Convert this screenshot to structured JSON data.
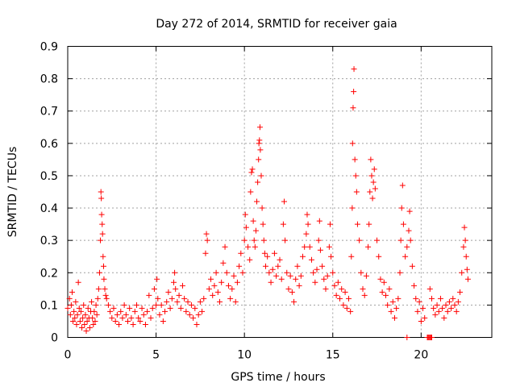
{
  "chart_data": {
    "type": "scatter",
    "title": "Day 272 of 2014, SRMTID for receiver gaia",
    "xlabel": "GPS time / hours",
    "ylabel": "SRMTID / TECUs",
    "xlim": [
      0,
      24
    ],
    "ylim": [
      0,
      0.9
    ],
    "xticks": [
      0,
      5,
      10,
      15,
      20
    ],
    "xtick_labels": [
      "0",
      "5",
      "10",
      "15",
      "20"
    ],
    "yticks": [
      0,
      0.1,
      0.2,
      0.3,
      0.4,
      0.5,
      0.6,
      0.7,
      0.8,
      0.9
    ],
    "ytick_labels": [
      "0",
      "0.1",
      "0.2",
      "0.3",
      "0.4",
      "0.5",
      "0.6",
      "0.7",
      "0.8",
      "0.9"
    ],
    "grid": true,
    "marker": "+",
    "series": [
      {
        "name": "SRMTID",
        "color": "#ff0000",
        "points": [
          [
            0.0,
            0.09
          ],
          [
            0.1,
            0.12
          ],
          [
            0.15,
            0.07
          ],
          [
            0.2,
            0.1
          ],
          [
            0.25,
            0.14
          ],
          [
            0.3,
            0.05
          ],
          [
            0.35,
            0.08
          ],
          [
            0.4,
            0.06
          ],
          [
            0.45,
            0.11
          ],
          [
            0.5,
            0.04
          ],
          [
            0.55,
            0.07
          ],
          [
            0.6,
            0.17
          ],
          [
            0.65,
            0.09
          ],
          [
            0.7,
            0.05
          ],
          [
            0.75,
            0.08
          ],
          [
            0.8,
            0.03
          ],
          [
            0.85,
            0.06
          ],
          [
            0.9,
            0.1
          ],
          [
            0.95,
            0.04
          ],
          [
            1.0,
            0.07
          ],
          [
            1.05,
            0.02
          ],
          [
            1.1,
            0.05
          ],
          [
            1.15,
            0.09
          ],
          [
            1.2,
            0.06
          ],
          [
            1.25,
            0.03
          ],
          [
            1.3,
            0.08
          ],
          [
            1.35,
            0.11
          ],
          [
            1.4,
            0.06
          ],
          [
            1.45,
            0.04
          ],
          [
            1.5,
            0.08
          ],
          [
            1.55,
            0.05
          ],
          [
            1.6,
            0.1
          ],
          [
            1.65,
            0.07
          ],
          [
            1.7,
            0.12
          ],
          [
            1.75,
            0.15
          ],
          [
            1.8,
            0.2
          ],
          [
            1.85,
            0.3
          ],
          [
            1.88,
            0.45
          ],
          [
            1.9,
            0.43
          ],
          [
            1.92,
            0.38
          ],
          [
            1.95,
            0.35
          ],
          [
            1.97,
            0.32
          ],
          [
            2.0,
            0.25
          ],
          [
            2.03,
            0.22
          ],
          [
            2.05,
            0.18
          ],
          [
            2.1,
            0.15
          ],
          [
            2.15,
            0.13
          ],
          [
            2.2,
            0.12
          ],
          [
            2.3,
            0.1
          ],
          [
            2.4,
            0.08
          ],
          [
            2.5,
            0.06
          ],
          [
            2.6,
            0.09
          ],
          [
            2.7,
            0.05
          ],
          [
            2.8,
            0.07
          ],
          [
            2.9,
            0.04
          ],
          [
            3.0,
            0.08
          ],
          [
            3.1,
            0.06
          ],
          [
            3.2,
            0.1
          ],
          [
            3.3,
            0.07
          ],
          [
            3.4,
            0.05
          ],
          [
            3.5,
            0.09
          ],
          [
            3.6,
            0.06
          ],
          [
            3.7,
            0.04
          ],
          [
            3.8,
            0.08
          ],
          [
            3.9,
            0.1
          ],
          [
            4.0,
            0.06
          ],
          [
            4.1,
            0.05
          ],
          [
            4.2,
            0.09
          ],
          [
            4.3,
            0.07
          ],
          [
            4.4,
            0.04
          ],
          [
            4.5,
            0.08
          ],
          [
            4.6,
            0.13
          ],
          [
            4.7,
            0.06
          ],
          [
            4.8,
            0.09
          ],
          [
            4.9,
            0.15
          ],
          [
            5.0,
            0.1
          ],
          [
            5.05,
            0.18
          ],
          [
            5.1,
            0.12
          ],
          [
            5.2,
            0.07
          ],
          [
            5.3,
            0.1
          ],
          [
            5.4,
            0.05
          ],
          [
            5.5,
            0.08
          ],
          [
            5.6,
            0.11
          ],
          [
            5.7,
            0.14
          ],
          [
            5.8,
            0.09
          ],
          [
            5.9,
            0.12
          ],
          [
            6.0,
            0.17
          ],
          [
            6.05,
            0.2
          ],
          [
            6.1,
            0.15
          ],
          [
            6.2,
            0.11
          ],
          [
            6.3,
            0.13
          ],
          [
            6.4,
            0.09
          ],
          [
            6.5,
            0.16
          ],
          [
            6.6,
            0.12
          ],
          [
            6.7,
            0.08
          ],
          [
            6.8,
            0.11
          ],
          [
            6.9,
            0.07
          ],
          [
            7.0,
            0.1
          ],
          [
            7.1,
            0.06
          ],
          [
            7.2,
            0.09
          ],
          [
            7.3,
            0.04
          ],
          [
            7.4,
            0.07
          ],
          [
            7.5,
            0.11
          ],
          [
            7.6,
            0.08
          ],
          [
            7.7,
            0.12
          ],
          [
            7.8,
            0.26
          ],
          [
            7.85,
            0.32
          ],
          [
            7.9,
            0.3
          ],
          [
            8.0,
            0.15
          ],
          [
            8.1,
            0.18
          ],
          [
            8.2,
            0.13
          ],
          [
            8.3,
            0.16
          ],
          [
            8.4,
            0.2
          ],
          [
            8.5,
            0.14
          ],
          [
            8.6,
            0.11
          ],
          [
            8.7,
            0.17
          ],
          [
            8.8,
            0.23
          ],
          [
            8.9,
            0.28
          ],
          [
            9.0,
            0.2
          ],
          [
            9.1,
            0.16
          ],
          [
            9.2,
            0.12
          ],
          [
            9.3,
            0.15
          ],
          [
            9.4,
            0.19
          ],
          [
            9.5,
            0.11
          ],
          [
            9.6,
            0.17
          ],
          [
            9.7,
            0.22
          ],
          [
            9.8,
            0.26
          ],
          [
            9.9,
            0.2
          ],
          [
            10.0,
            0.3
          ],
          [
            10.05,
            0.38
          ],
          [
            10.1,
            0.34
          ],
          [
            10.2,
            0.28
          ],
          [
            10.3,
            0.24
          ],
          [
            10.35,
            0.45
          ],
          [
            10.4,
            0.51
          ],
          [
            10.45,
            0.52
          ],
          [
            10.5,
            0.36
          ],
          [
            10.55,
            0.3
          ],
          [
            10.6,
            0.28
          ],
          [
            10.65,
            0.33
          ],
          [
            10.7,
            0.42
          ],
          [
            10.75,
            0.48
          ],
          [
            10.8,
            0.55
          ],
          [
            10.82,
            0.6
          ],
          [
            10.85,
            0.61
          ],
          [
            10.88,
            0.65
          ],
          [
            10.9,
            0.58
          ],
          [
            10.95,
            0.5
          ],
          [
            11.0,
            0.4
          ],
          [
            11.05,
            0.35
          ],
          [
            11.1,
            0.3
          ],
          [
            11.15,
            0.26
          ],
          [
            11.2,
            0.22
          ],
          [
            11.3,
            0.25
          ],
          [
            11.4,
            0.2
          ],
          [
            11.5,
            0.17
          ],
          [
            11.6,
            0.21
          ],
          [
            11.7,
            0.26
          ],
          [
            11.8,
            0.19
          ],
          [
            11.9,
            0.22
          ],
          [
            12.0,
            0.24
          ],
          [
            12.1,
            0.18
          ],
          [
            12.2,
            0.35
          ],
          [
            12.25,
            0.42
          ],
          [
            12.3,
            0.3
          ],
          [
            12.4,
            0.2
          ],
          [
            12.5,
            0.15
          ],
          [
            12.6,
            0.19
          ],
          [
            12.7,
            0.14
          ],
          [
            12.8,
            0.11
          ],
          [
            12.9,
            0.18
          ],
          [
            13.0,
            0.22
          ],
          [
            13.1,
            0.16
          ],
          [
            13.2,
            0.19
          ],
          [
            13.3,
            0.25
          ],
          [
            13.4,
            0.28
          ],
          [
            13.5,
            0.32
          ],
          [
            13.55,
            0.38
          ],
          [
            13.6,
            0.35
          ],
          [
            13.7,
            0.28
          ],
          [
            13.8,
            0.24
          ],
          [
            13.9,
            0.2
          ],
          [
            14.0,
            0.17
          ],
          [
            14.1,
            0.21
          ],
          [
            14.2,
            0.3
          ],
          [
            14.25,
            0.36
          ],
          [
            14.3,
            0.27
          ],
          [
            14.4,
            0.22
          ],
          [
            14.5,
            0.18
          ],
          [
            14.6,
            0.15
          ],
          [
            14.7,
            0.19
          ],
          [
            14.8,
            0.28
          ],
          [
            14.85,
            0.35
          ],
          [
            14.9,
            0.25
          ],
          [
            15.0,
            0.2
          ],
          [
            15.1,
            0.16
          ],
          [
            15.2,
            0.13
          ],
          [
            15.3,
            0.17
          ],
          [
            15.4,
            0.12
          ],
          [
            15.5,
            0.15
          ],
          [
            15.6,
            0.1
          ],
          [
            15.7,
            0.14
          ],
          [
            15.8,
            0.09
          ],
          [
            15.9,
            0.12
          ],
          [
            16.0,
            0.08
          ],
          [
            16.05,
            0.25
          ],
          [
            16.1,
            0.4
          ],
          [
            16.12,
            0.6
          ],
          [
            16.15,
            0.71
          ],
          [
            16.18,
            0.76
          ],
          [
            16.2,
            0.83
          ],
          [
            16.25,
            0.55
          ],
          [
            16.3,
            0.5
          ],
          [
            16.35,
            0.45
          ],
          [
            16.4,
            0.35
          ],
          [
            16.5,
            0.3
          ],
          [
            16.6,
            0.2
          ],
          [
            16.7,
            0.15
          ],
          [
            16.8,
            0.13
          ],
          [
            16.9,
            0.19
          ],
          [
            17.0,
            0.28
          ],
          [
            17.05,
            0.35
          ],
          [
            17.1,
            0.45
          ],
          [
            17.15,
            0.55
          ],
          [
            17.2,
            0.5
          ],
          [
            17.25,
            0.43
          ],
          [
            17.3,
            0.48
          ],
          [
            17.35,
            0.52
          ],
          [
            17.4,
            0.46
          ],
          [
            17.5,
            0.3
          ],
          [
            17.6,
            0.25
          ],
          [
            17.7,
            0.18
          ],
          [
            17.8,
            0.14
          ],
          [
            17.9,
            0.17
          ],
          [
            18.0,
            0.13
          ],
          [
            18.1,
            0.1
          ],
          [
            18.2,
            0.15
          ],
          [
            18.3,
            0.08
          ],
          [
            18.4,
            0.11
          ],
          [
            18.5,
            0.06
          ],
          [
            18.6,
            0.09
          ],
          [
            18.7,
            0.12
          ],
          [
            18.8,
            0.2
          ],
          [
            18.85,
            0.3
          ],
          [
            18.9,
            0.4
          ],
          [
            18.95,
            0.47
          ],
          [
            19.0,
            0.35
          ],
          [
            19.1,
            0.25
          ],
          [
            19.2,
            0.28
          ],
          [
            19.3,
            0.33
          ],
          [
            19.35,
            0.39
          ],
          [
            19.4,
            0.3
          ],
          [
            19.5,
            0.22
          ],
          [
            19.6,
            0.16
          ],
          [
            19.7,
            0.12
          ],
          [
            19.8,
            0.08
          ],
          [
            19.9,
            0.11
          ],
          [
            20.0,
            0.05
          ],
          [
            20.1,
            0.09
          ],
          [
            20.2,
            0.06
          ],
          [
            20.5,
            0.15
          ],
          [
            20.6,
            0.12
          ],
          [
            20.7,
            0.09
          ],
          [
            20.8,
            0.07
          ],
          [
            20.9,
            0.1
          ],
          [
            21.0,
            0.08
          ],
          [
            21.1,
            0.12
          ],
          [
            21.2,
            0.09
          ],
          [
            21.3,
            0.06
          ],
          [
            21.4,
            0.1
          ],
          [
            21.5,
            0.08
          ],
          [
            21.6,
            0.11
          ],
          [
            21.7,
            0.09
          ],
          [
            21.8,
            0.12
          ],
          [
            21.9,
            0.1
          ],
          [
            22.0,
            0.08
          ],
          [
            22.1,
            0.11
          ],
          [
            22.2,
            0.14
          ],
          [
            22.3,
            0.2
          ],
          [
            22.4,
            0.28
          ],
          [
            22.45,
            0.34
          ],
          [
            22.5,
            0.3
          ],
          [
            22.55,
            0.25
          ],
          [
            22.6,
            0.21
          ],
          [
            22.65,
            0.18
          ]
        ]
      }
    ],
    "zero_markers_x": [
      19.2,
      20.35,
      20.4,
      20.45,
      20.5,
      20.55,
      20.6
    ]
  }
}
